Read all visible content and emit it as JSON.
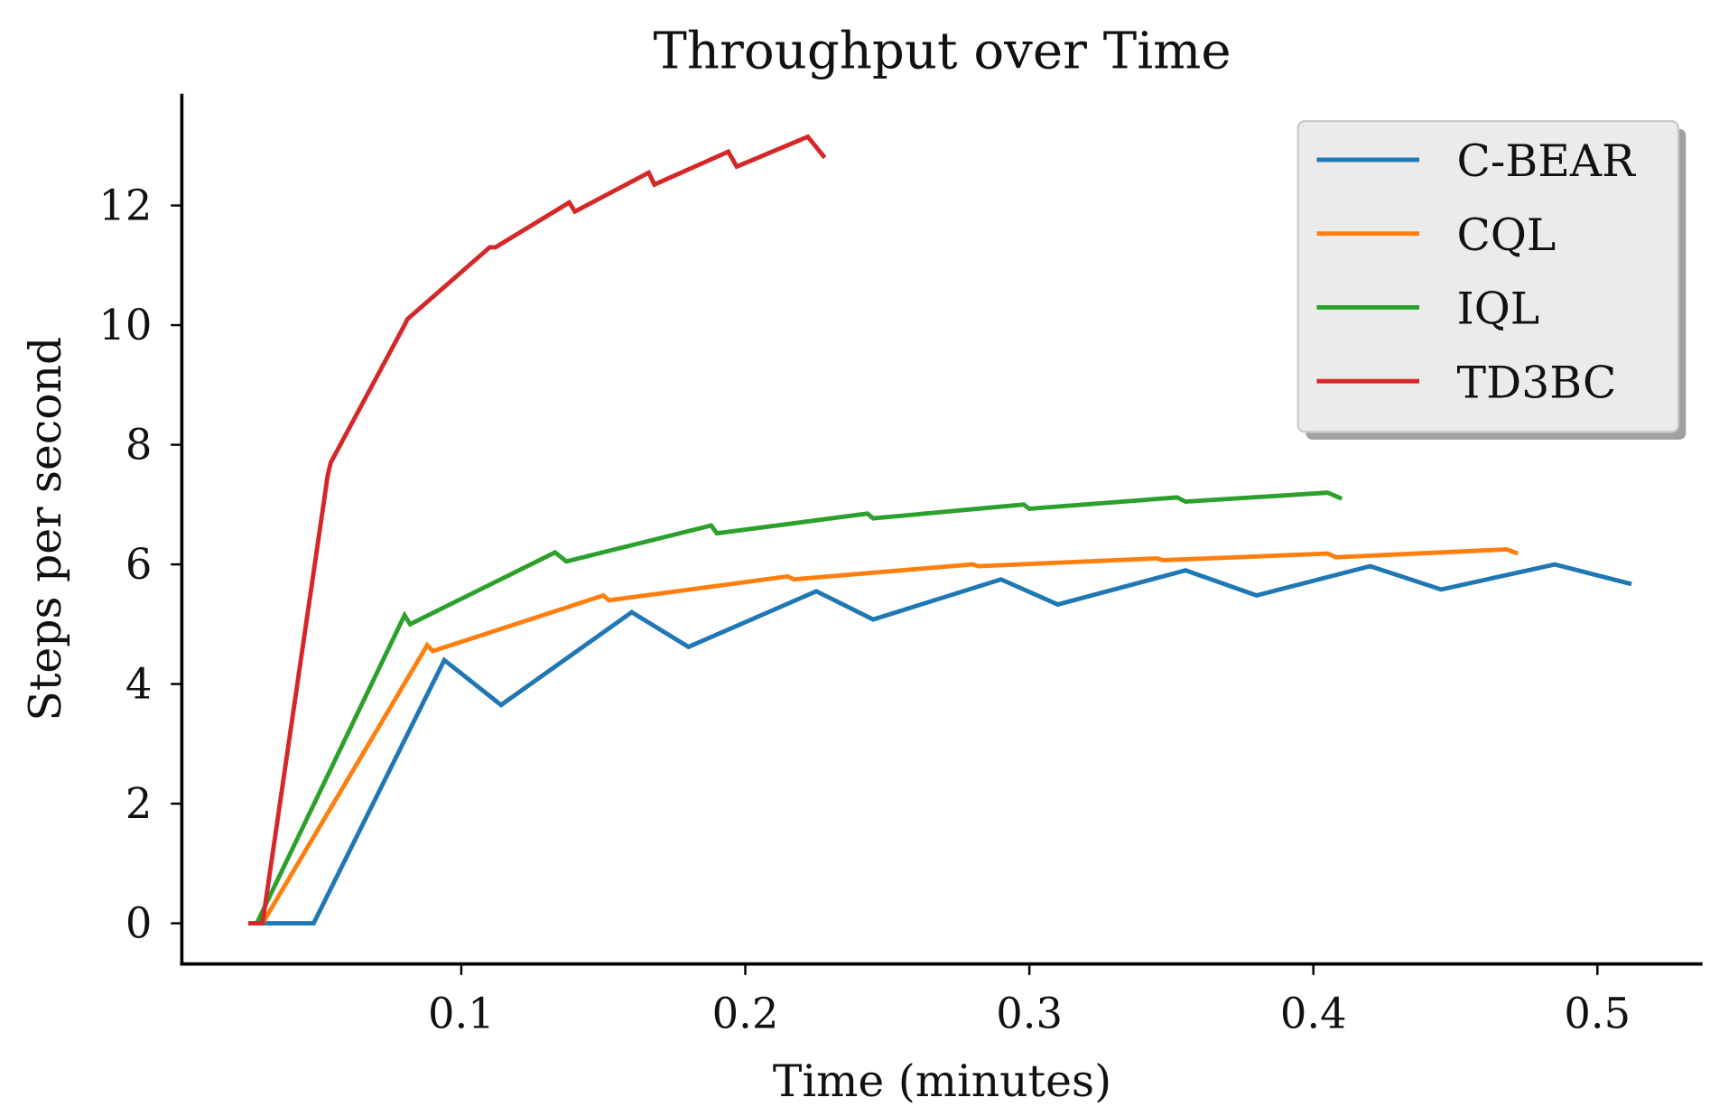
{
  "chart_data": {
    "type": "line",
    "title": "Throughput over Time",
    "xlabel": "Time (minutes)",
    "ylabel": "Steps per second",
    "xlim": [
      0.0016,
      0.537
    ],
    "ylim": [
      -0.68,
      13.87
    ],
    "xticks": [
      0.1,
      0.2,
      0.3,
      0.4,
      0.5
    ],
    "xtick_labels": [
      "0.1",
      "0.2",
      "0.3",
      "0.4",
      "0.5"
    ],
    "yticks": [
      0,
      2,
      4,
      6,
      8,
      10,
      12
    ],
    "ytick_labels": [
      "0",
      "2",
      "4",
      "6",
      "8",
      "10",
      "12"
    ],
    "grid": false,
    "legend_position": "top-right",
    "series": [
      {
        "name": "C-BEAR",
        "color": "#1f77b4",
        "x": [
          0.027,
          0.048,
          0.094,
          0.114,
          0.16,
          0.18,
          0.225,
          0.245,
          0.29,
          0.31,
          0.355,
          0.38,
          0.42,
          0.445,
          0.485,
          0.512
        ],
        "y": [
          0,
          0,
          4.4,
          3.65,
          5.2,
          4.62,
          5.55,
          5.08,
          5.75,
          5.33,
          5.9,
          5.48,
          5.97,
          5.58,
          6.0,
          5.67
        ]
      },
      {
        "name": "CQL",
        "color": "#ff7f0e",
        "x": [
          0.03,
          0.088,
          0.09,
          0.15,
          0.152,
          0.215,
          0.217,
          0.28,
          0.282,
          0.345,
          0.347,
          0.405,
          0.408,
          0.468,
          0.472
        ],
        "y": [
          0,
          4.65,
          4.55,
          5.48,
          5.4,
          5.8,
          5.75,
          6.0,
          5.97,
          6.1,
          6.07,
          6.18,
          6.12,
          6.25,
          6.18
        ]
      },
      {
        "name": "IQL",
        "color": "#2ca02c",
        "x": [
          0.028,
          0.08,
          0.082,
          0.133,
          0.137,
          0.188,
          0.19,
          0.243,
          0.245,
          0.298,
          0.3,
          0.352,
          0.355,
          0.405,
          0.41
        ],
        "y": [
          0,
          5.15,
          5.0,
          6.2,
          6.05,
          6.65,
          6.52,
          6.85,
          6.77,
          7.0,
          6.93,
          7.12,
          7.05,
          7.2,
          7.1
        ]
      },
      {
        "name": "TD3BC",
        "color": "#d62728",
        "x": [
          0.025,
          0.03,
          0.053,
          0.054,
          0.08,
          0.081,
          0.11,
          0.112,
          0.138,
          0.14,
          0.166,
          0.168,
          0.194,
          0.197,
          0.222,
          0.228
        ],
        "y": [
          0,
          0,
          7.5,
          7.7,
          10.0,
          10.1,
          11.3,
          11.3,
          12.05,
          11.9,
          12.55,
          12.35,
          12.9,
          12.65,
          13.15,
          12.8
        ]
      }
    ]
  }
}
